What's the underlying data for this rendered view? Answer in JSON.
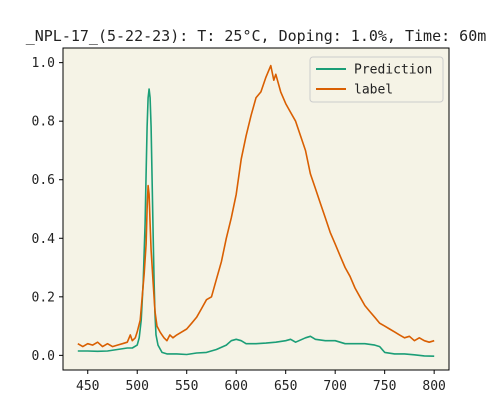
{
  "chart_data": {
    "type": "line",
    "title": "_NPL-17_(5-22-23): T: 25°C, Doping: 1.0%, Time: 60m",
    "xlabel": "",
    "ylabel": "",
    "xlim": [
      425,
      815
    ],
    "ylim": [
      -0.05,
      1.05
    ],
    "x_ticks": [
      450,
      500,
      550,
      600,
      650,
      700,
      750,
      800
    ],
    "y_ticks": [
      0.0,
      0.2,
      0.4,
      0.6,
      0.8,
      1.0
    ],
    "x_tick_labels": [
      "450",
      "500",
      "550",
      "600",
      "650",
      "700",
      "750",
      "800"
    ],
    "y_tick_labels": [
      "0.0",
      "0.2",
      "0.4",
      "0.6",
      "0.8",
      "1.0"
    ],
    "grid": false,
    "legend_position": "top-right",
    "background_color": "#f5f3e6",
    "series": [
      {
        "name": "Prediction",
        "color": "#1b9e77",
        "points": [
          [
            440,
            0.015
          ],
          [
            450,
            0.015
          ],
          [
            460,
            0.014
          ],
          [
            470,
            0.015
          ],
          [
            480,
            0.02
          ],
          [
            490,
            0.025
          ],
          [
            495,
            0.025
          ],
          [
            500,
            0.035
          ],
          [
            502,
            0.06
          ],
          [
            504,
            0.12
          ],
          [
            506,
            0.25
          ],
          [
            508,
            0.45
          ],
          [
            509,
            0.62
          ],
          [
            510,
            0.78
          ],
          [
            511,
            0.88
          ],
          [
            512,
            0.91
          ],
          [
            513,
            0.88
          ],
          [
            514,
            0.78
          ],
          [
            515,
            0.6
          ],
          [
            516,
            0.42
          ],
          [
            517,
            0.25
          ],
          [
            518,
            0.14
          ],
          [
            519,
            0.07
          ],
          [
            521,
            0.035
          ],
          [
            525,
            0.01
          ],
          [
            530,
            0.005
          ],
          [
            540,
            0.005
          ],
          [
            550,
            0.003
          ],
          [
            560,
            0.008
          ],
          [
            570,
            0.01
          ],
          [
            580,
            0.02
          ],
          [
            590,
            0.035
          ],
          [
            595,
            0.05
          ],
          [
            600,
            0.055
          ],
          [
            605,
            0.05
          ],
          [
            610,
            0.04
          ],
          [
            620,
            0.04
          ],
          [
            630,
            0.042
          ],
          [
            640,
            0.045
          ],
          [
            650,
            0.05
          ],
          [
            655,
            0.055
          ],
          [
            660,
            0.045
          ],
          [
            670,
            0.06
          ],
          [
            675,
            0.065
          ],
          [
            680,
            0.055
          ],
          [
            690,
            0.05
          ],
          [
            700,
            0.05
          ],
          [
            710,
            0.04
          ],
          [
            720,
            0.04
          ],
          [
            730,
            0.04
          ],
          [
            740,
            0.035
          ],
          [
            745,
            0.03
          ],
          [
            750,
            0.01
          ],
          [
            760,
            0.005
          ],
          [
            770,
            0.005
          ],
          [
            780,
            0.002
          ],
          [
            790,
            -0.002
          ],
          [
            800,
            -0.003
          ]
        ]
      },
      {
        "name": "label",
        "color": "#d95f02",
        "points": [
          [
            440,
            0.04
          ],
          [
            445,
            0.03
          ],
          [
            450,
            0.04
          ],
          [
            455,
            0.035
          ],
          [
            460,
            0.045
          ],
          [
            465,
            0.03
          ],
          [
            470,
            0.04
          ],
          [
            475,
            0.03
          ],
          [
            480,
            0.035
          ],
          [
            485,
            0.04
          ],
          [
            490,
            0.045
          ],
          [
            493,
            0.07
          ],
          [
            495,
            0.05
          ],
          [
            498,
            0.06
          ],
          [
            500,
            0.08
          ],
          [
            503,
            0.12
          ],
          [
            505,
            0.2
          ],
          [
            507,
            0.28
          ],
          [
            509,
            0.38
          ],
          [
            510,
            0.5
          ],
          [
            511,
            0.58
          ],
          [
            512,
            0.55
          ],
          [
            513,
            0.45
          ],
          [
            514,
            0.36
          ],
          [
            516,
            0.25
          ],
          [
            518,
            0.15
          ],
          [
            520,
            0.1
          ],
          [
            523,
            0.08
          ],
          [
            525,
            0.07
          ],
          [
            527,
            0.06
          ],
          [
            530,
            0.05
          ],
          [
            533,
            0.07
          ],
          [
            536,
            0.06
          ],
          [
            540,
            0.07
          ],
          [
            545,
            0.08
          ],
          [
            550,
            0.09
          ],
          [
            555,
            0.11
          ],
          [
            560,
            0.13
          ],
          [
            565,
            0.16
          ],
          [
            570,
            0.19
          ],
          [
            575,
            0.2
          ],
          [
            580,
            0.26
          ],
          [
            585,
            0.32
          ],
          [
            590,
            0.4
          ],
          [
            595,
            0.47
          ],
          [
            600,
            0.55
          ],
          [
            605,
            0.67
          ],
          [
            610,
            0.75
          ],
          [
            615,
            0.82
          ],
          [
            620,
            0.88
          ],
          [
            625,
            0.9
          ],
          [
            630,
            0.95
          ],
          [
            635,
            0.99
          ],
          [
            638,
            0.94
          ],
          [
            640,
            0.96
          ],
          [
            645,
            0.9
          ],
          [
            650,
            0.86
          ],
          [
            655,
            0.83
          ],
          [
            660,
            0.8
          ],
          [
            665,
            0.75
          ],
          [
            670,
            0.7
          ],
          [
            675,
            0.62
          ],
          [
            680,
            0.57
          ],
          [
            685,
            0.52
          ],
          [
            690,
            0.47
          ],
          [
            695,
            0.42
          ],
          [
            700,
            0.38
          ],
          [
            705,
            0.34
          ],
          [
            710,
            0.3
          ],
          [
            715,
            0.27
          ],
          [
            720,
            0.23
          ],
          [
            725,
            0.2
          ],
          [
            730,
            0.17
          ],
          [
            735,
            0.15
          ],
          [
            740,
            0.13
          ],
          [
            745,
            0.11
          ],
          [
            750,
            0.1
          ],
          [
            755,
            0.09
          ],
          [
            760,
            0.08
          ],
          [
            765,
            0.07
          ],
          [
            770,
            0.06
          ],
          [
            775,
            0.065
          ],
          [
            780,
            0.05
          ],
          [
            785,
            0.06
          ],
          [
            790,
            0.05
          ],
          [
            795,
            0.045
          ],
          [
            800,
            0.05
          ]
        ]
      }
    ]
  }
}
